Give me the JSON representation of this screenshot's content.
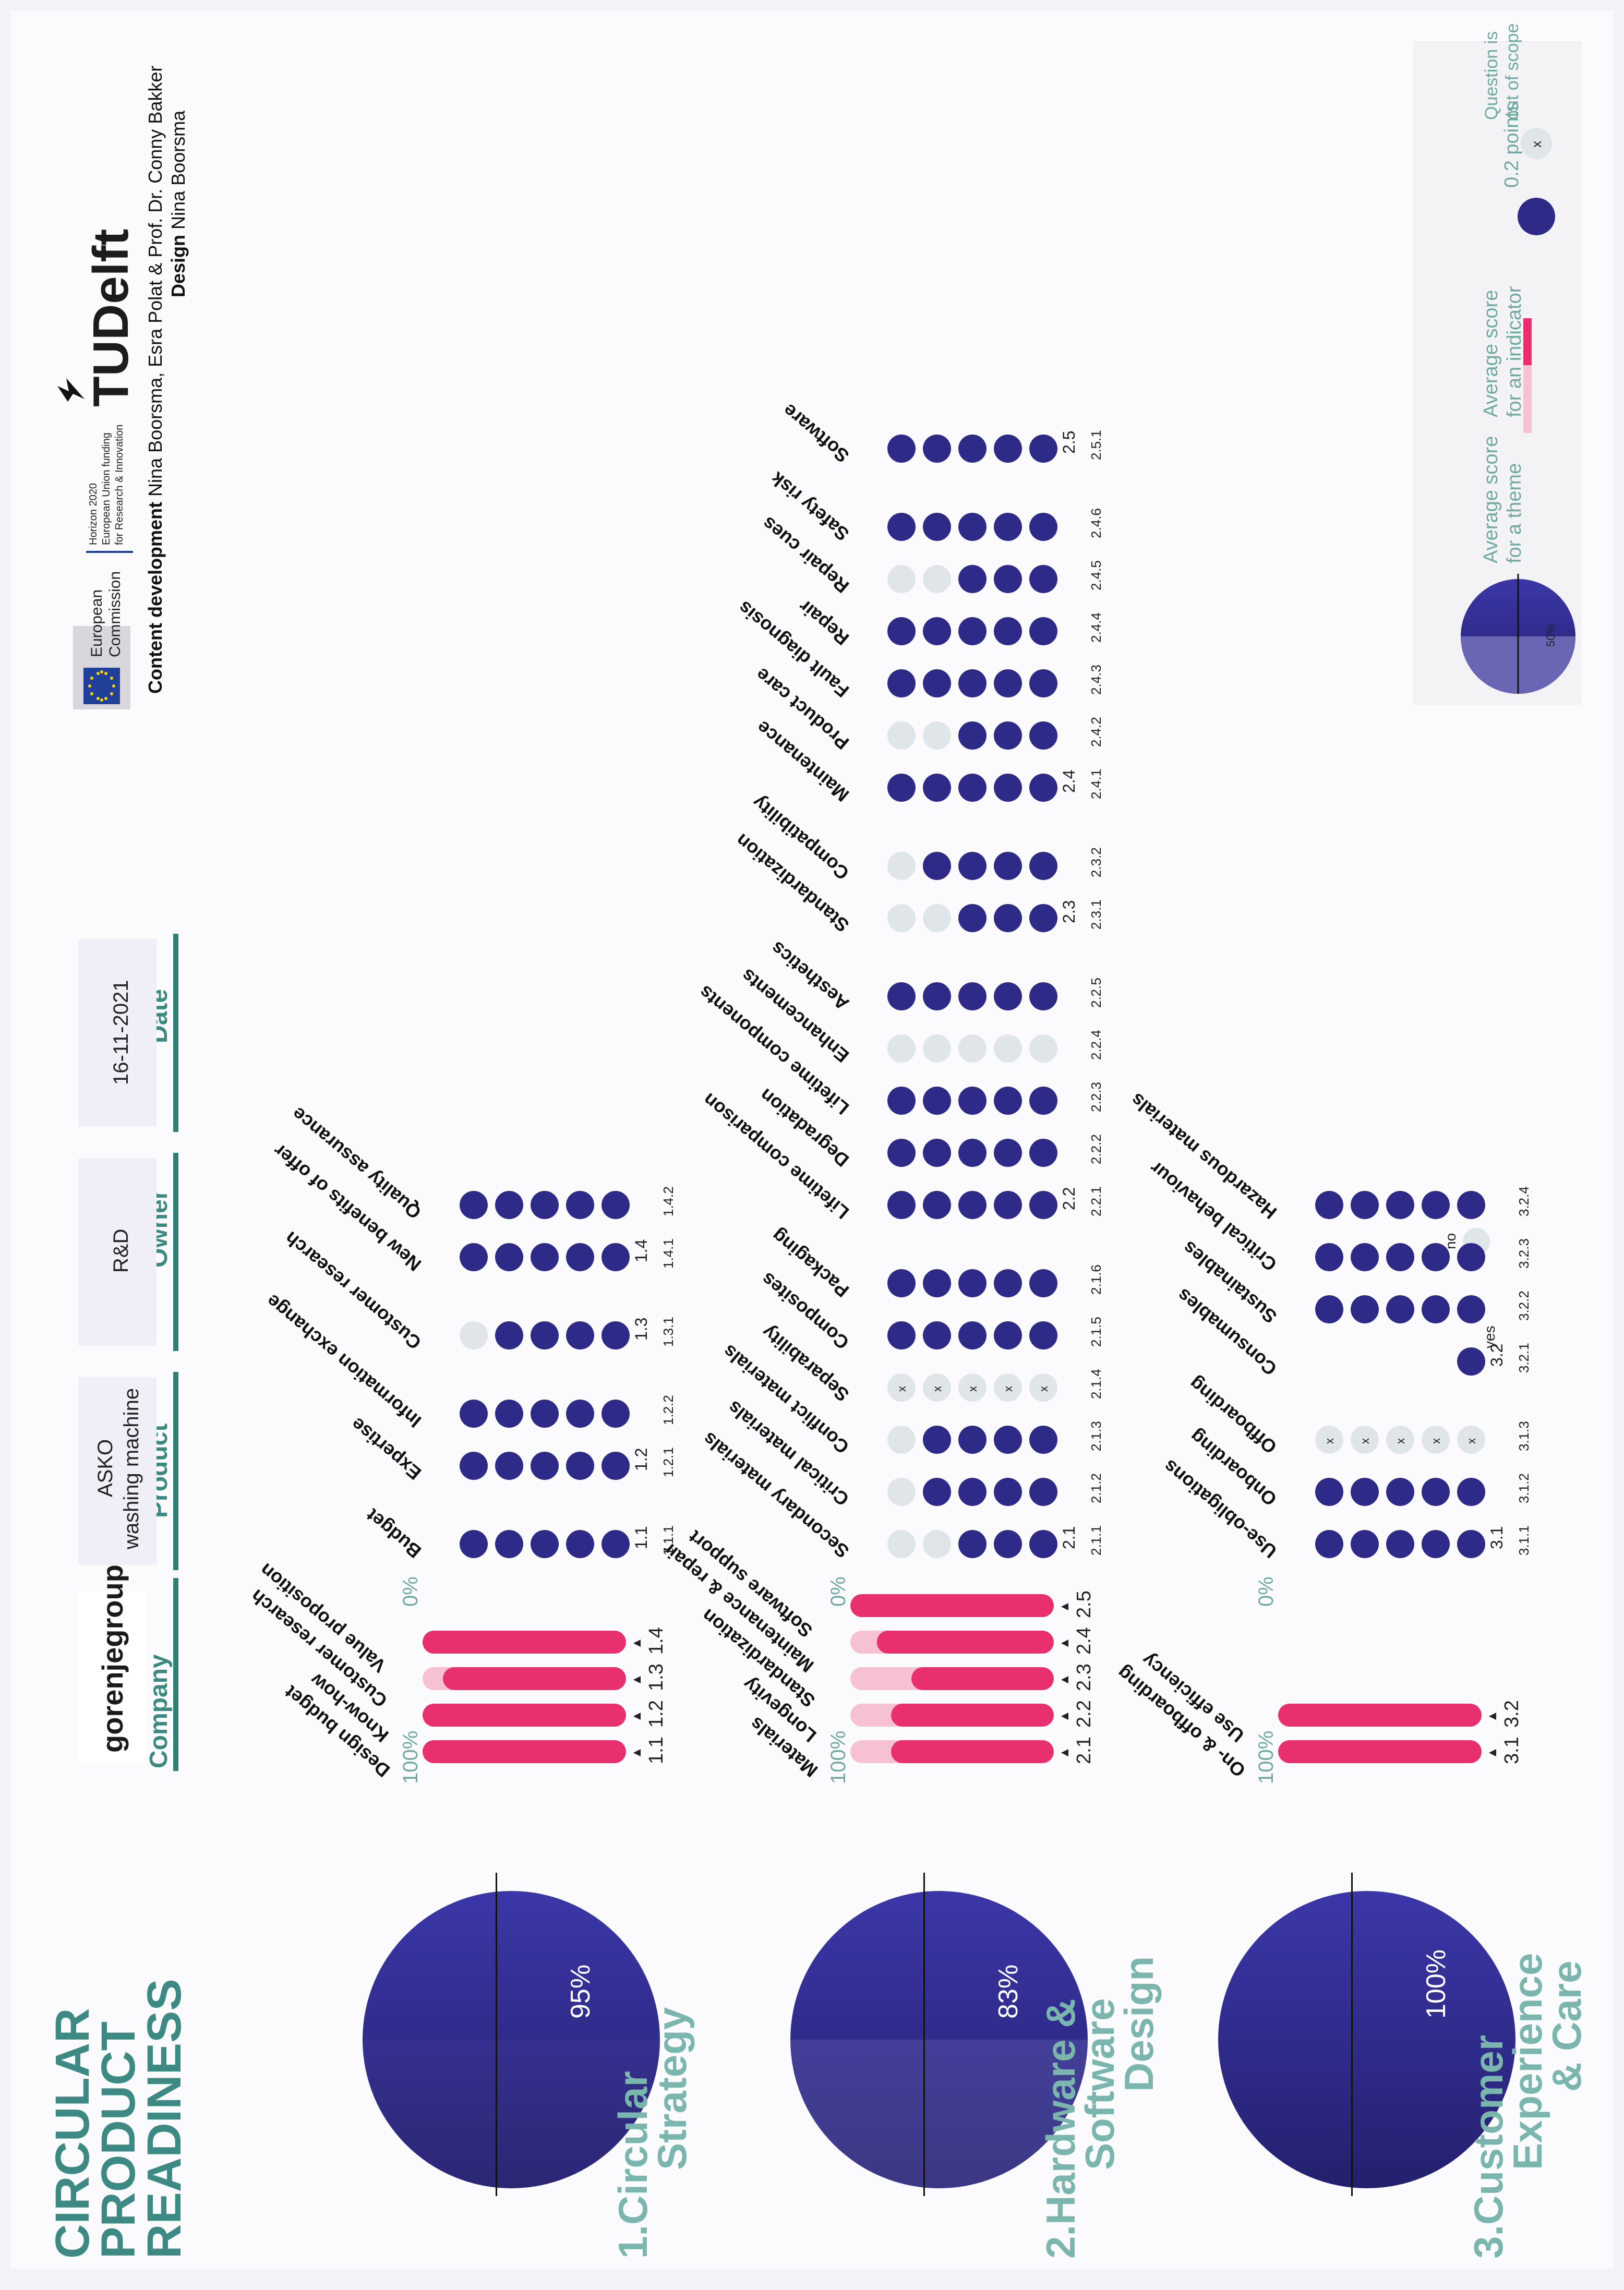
{
  "poster_title": [
    "CIRCULAR",
    "PRODUCT",
    "READINESS"
  ],
  "meta": {
    "company_label": "Company",
    "company_value": "gorenjegroup",
    "product_label": "Product",
    "product_value": [
      "ASKO",
      "washing machine"
    ],
    "owner_label": "Owner",
    "owner_value": "R&D",
    "date_label": "Date",
    "date_value": "16-11-2021"
  },
  "header": {
    "eu_line1": "European",
    "eu_line2": "Commission",
    "horizon_lines": [
      "Horizon 2020",
      "European Union funding",
      "for Research & Innovation"
    ],
    "tudelft": "TUDelft",
    "credit_line1_bold": "Content development",
    "credit_line1_rest": " Nina Boorsma, Esra Polat & Prof. Dr. Conny Bakker",
    "credit_line2_bold": "Design",
    "credit_line2_rest": " Nina Boorsma"
  },
  "legend": {
    "theme_label": [
      "Average score",
      "for a theme"
    ],
    "indicator_label": [
      "Average score",
      "for an indicator"
    ],
    "points_label": "0.2 points",
    "out_of_scope_label": [
      "Question is",
      "out of scope"
    ],
    "example_pct": "50%",
    "x_mark": "x",
    "colors": {
      "dot": "#2e2a87",
      "empty": "#e0e5ea",
      "bar": "#e8306e",
      "bar_light": "#f6c1d1"
    }
  },
  "chart_data": {
    "type": "bar",
    "themes": [
      {
        "title": [
          "1.Circular",
          "Strategy"
        ],
        "score_label": "95%",
        "score": 95,
        "scale_top": "100%",
        "scale_bottom": "0%",
        "bar_names": [
          "Design budget",
          "Know-how",
          "Customer research",
          "Value proposition"
        ],
        "bar_codes": [
          "1.1",
          "1.2",
          "1.3",
          "1.4"
        ],
        "bar_values": [
          100,
          100,
          90,
          100
        ],
        "indicators": [
          {
            "code": "1.1",
            "questions": [
              {
                "q": "1.1.1",
                "name": "Budget",
                "score": 5
              }
            ]
          },
          {
            "code": "1.2",
            "questions": [
              {
                "q": "1.2.1",
                "name": "Expertise",
                "score": 5
              },
              {
                "q": "1.2.2",
                "name": "Information exchange",
                "score": 5
              }
            ]
          },
          {
            "code": "1.3",
            "questions": [
              {
                "q": "1.3.1",
                "name": "Customer research",
                "score": 4
              }
            ]
          },
          {
            "code": "1.4",
            "questions": [
              {
                "q": "1.4.1",
                "name": "New benefits of offer",
                "score": 5
              },
              {
                "q": "1.4.2",
                "name": "Quality assurance",
                "score": 5
              }
            ]
          }
        ]
      },
      {
        "title": [
          "2.Hardware &",
          "Software",
          "Design"
        ],
        "score_label": "83%",
        "score": 83,
        "scale_top": "100%",
        "scale_bottom": "0%",
        "bar_names": [
          "Materials",
          "Longevity",
          "Standardization",
          "Maintenance & repair",
          "Software support"
        ],
        "bar_codes": [
          "2.1",
          "2.2",
          "2.3",
          "2.4",
          "2.5"
        ],
        "bar_values": [
          80,
          80,
          70,
          87,
          100
        ],
        "indicators": [
          {
            "code": "2.1",
            "questions": [
              {
                "q": "2.1.1",
                "name": "Secondary materials",
                "score": 3
              },
              {
                "q": "2.1.2",
                "name": "Critical materials",
                "score": 4
              },
              {
                "q": "2.1.3",
                "name": "Conflict materials",
                "score": 4
              },
              {
                "q": "2.1.4",
                "name": "Separability",
                "score": "x"
              },
              {
                "q": "2.1.5",
                "name": "Composites",
                "score": 5
              },
              {
                "q": "2.1.6",
                "name": "Packaging",
                "score": 5
              }
            ]
          },
          {
            "code": "2.2",
            "questions": [
              {
                "q": "2.2.1",
                "name": "Lifetime comparison",
                "score": 5
              },
              {
                "q": "2.2.2",
                "name": "Degradation",
                "score": 5
              },
              {
                "q": "2.2.3",
                "name": "Lifetime components",
                "score": 5
              },
              {
                "q": "2.2.4",
                "name": "Enhancements",
                "score": 0
              },
              {
                "q": "2.2.5",
                "name": "Aesthetics",
                "score": 5
              }
            ]
          },
          {
            "code": "2.3",
            "questions": [
              {
                "q": "2.3.1",
                "name": "Standardization",
                "score": 3
              },
              {
                "q": "2.3.2",
                "name": "Compatibility",
                "score": 4
              }
            ]
          },
          {
            "code": "2.4",
            "questions": [
              {
                "q": "2.4.1",
                "name": "Maintenance",
                "score": 5
              },
              {
                "q": "2.4.2",
                "name": "Product care",
                "score": 3
              },
              {
                "q": "2.4.3",
                "name": "Fault diagnosis",
                "score": 5
              },
              {
                "q": "2.4.4",
                "name": "Repair",
                "score": 5
              },
              {
                "q": "2.4.5",
                "name": "Repair cues",
                "score": 3
              },
              {
                "q": "2.4.6",
                "name": "Safety risk",
                "score": 5
              }
            ]
          },
          {
            "code": "2.5",
            "questions": [
              {
                "q": "2.5.1",
                "name": "Software",
                "score": 5
              }
            ]
          }
        ]
      },
      {
        "title": [
          "3.Customer",
          "Experience",
          "& Care"
        ],
        "score_label": "100%",
        "score": 100,
        "scale_top": "100%",
        "scale_bottom": "0%",
        "bar_names": [
          "On- & offboarding",
          "Use efficiency"
        ],
        "bar_codes": [
          "3.1",
          "3.2"
        ],
        "bar_values": [
          100,
          100
        ],
        "indicators": [
          {
            "code": "3.1",
            "questions": [
              {
                "q": "3.1.1",
                "name": "Use-obligations",
                "score": 5
              },
              {
                "q": "3.1.2",
                "name": "Onboarding",
                "score": 5
              },
              {
                "q": "3.1.3",
                "name": "Offboarding",
                "score": "x"
              }
            ]
          },
          {
            "code": "3.2",
            "questions": [
              {
                "q": "3.2.1",
                "name": "Consumables",
                "score": "yes",
                "yes_label": "yes",
                "no_label": "no"
              },
              {
                "q": "3.2.2",
                "name": "Sustainables",
                "score": 5
              },
              {
                "q": "3.2.3",
                "name": "Critical behaviour",
                "score": 5
              },
              {
                "q": "3.2.4",
                "name": "Hazardous materials",
                "score": 5
              }
            ]
          }
        ]
      }
    ]
  }
}
